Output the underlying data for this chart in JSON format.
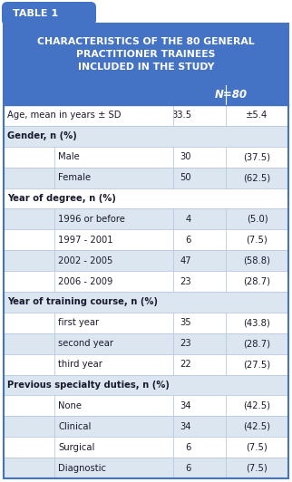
{
  "table_label": "TABLE 1",
  "title": "CHARACTERISTICS OF THE 80 GENERAL\nPRACTITIONER TRAINEES\nINCLUDED IN THE STUDY",
  "header_col": "N=80",
  "rows": [
    {
      "type": "data",
      "indent": 0,
      "label": "Age, mean in years ± SD",
      "val1": "33.5",
      "val2": "±5.4",
      "bg": "#ffffff"
    },
    {
      "type": "section",
      "indent": 0,
      "label": "Gender, n (%)",
      "val1": "",
      "val2": "",
      "bg": "#dce6f1"
    },
    {
      "type": "data",
      "indent": 1,
      "label": "Male",
      "val1": "30",
      "val2": "(37.5)",
      "bg": "#ffffff"
    },
    {
      "type": "data",
      "indent": 1,
      "label": "Female",
      "val1": "50",
      "val2": "(62.5)",
      "bg": "#dce6f1"
    },
    {
      "type": "section",
      "indent": 0,
      "label": "Year of degree, n (%)",
      "val1": "",
      "val2": "",
      "bg": "#ffffff"
    },
    {
      "type": "data",
      "indent": 1,
      "label": "1996 or before",
      "val1": "4",
      "val2": "(5.0)",
      "bg": "#dce6f1"
    },
    {
      "type": "data",
      "indent": 1,
      "label": "1997 - 2001",
      "val1": "6",
      "val2": "(7.5)",
      "bg": "#ffffff"
    },
    {
      "type": "data",
      "indent": 1,
      "label": "2002 - 2005",
      "val1": "47",
      "val2": "(58.8)",
      "bg": "#dce6f1"
    },
    {
      "type": "data",
      "indent": 1,
      "label": "2006 - 2009",
      "val1": "23",
      "val2": "(28.7)",
      "bg": "#ffffff"
    },
    {
      "type": "section",
      "indent": 0,
      "label": "Year of training course, n (%)",
      "val1": "",
      "val2": "",
      "bg": "#dce6f1"
    },
    {
      "type": "data",
      "indent": 1,
      "label": "first year",
      "val1": "35",
      "val2": "(43.8)",
      "bg": "#ffffff"
    },
    {
      "type": "data",
      "indent": 1,
      "label": "second year",
      "val1": "23",
      "val2": "(28.7)",
      "bg": "#dce6f1"
    },
    {
      "type": "data",
      "indent": 1,
      "label": "third year",
      "val1": "22",
      "val2": "(27.5)",
      "bg": "#ffffff"
    },
    {
      "type": "section",
      "indent": 0,
      "label": "Previous specialty duties, n (%)",
      "val1": "",
      "val2": "",
      "bg": "#dce6f1"
    },
    {
      "type": "data",
      "indent": 1,
      "label": "None",
      "val1": "34",
      "val2": "(42.5)",
      "bg": "#ffffff"
    },
    {
      "type": "data",
      "indent": 1,
      "label": "Clinical",
      "val1": "34",
      "val2": "(42.5)",
      "bg": "#dce6f1"
    },
    {
      "type": "data",
      "indent": 1,
      "label": "Surgical",
      "val1": "6",
      "val2": "(7.5)",
      "bg": "#ffffff"
    },
    {
      "type": "data",
      "indent": 1,
      "label": "Diagnostic",
      "val1": "6",
      "val2": "(7.5)",
      "bg": "#dce6f1"
    }
  ],
  "color_header_bg": "#4472c4",
  "color_header_text": "#ffffff",
  "color_border": "#4472c4",
  "color_divider": "#b8c8e0",
  "color_text": "#1a1a2e",
  "figw": 3.22,
  "figh": 5.32,
  "dpi": 100,
  "tab_label_fontsize": 8,
  "title_fontsize": 7.8,
  "body_fontsize": 7.2,
  "header_row_fontsize": 8.5
}
